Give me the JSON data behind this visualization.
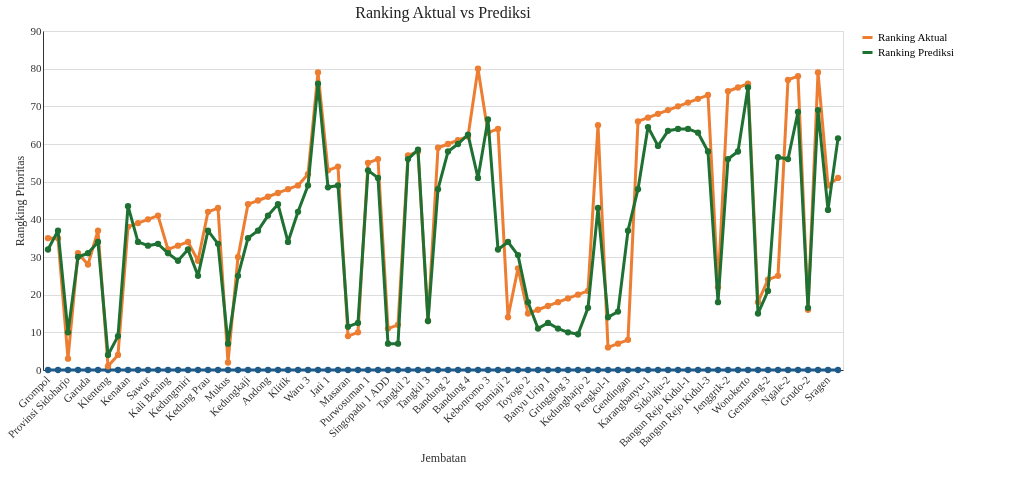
{
  "chart_data": {
    "type": "line",
    "title": "Ranking Aktual vs Prediksi",
    "xlabel": "Jembatan",
    "ylabel": "Rangking Prioritas",
    "categories": [
      "Grompol",
      null,
      "Provinsi Sidoharjo",
      null,
      "Garuda",
      null,
      "Klenteng",
      null,
      "Kenatan",
      null,
      "Sawur",
      null,
      "Kali Bening",
      null,
      "Kedungmiri",
      null,
      "Kedung Prau",
      null,
      "Mukus",
      null,
      "Kedungkaji",
      null,
      "Andong",
      null,
      "Klitik",
      null,
      "Waru 3",
      null,
      "Jati 1",
      null,
      "Masaran",
      null,
      "Purwosuman 1",
      null,
      "Singopadu 1 ADD",
      null,
      "Tangkil 2",
      null,
      "Tangkil 3",
      null,
      "Bandung 2",
      null,
      "Bandung 4",
      null,
      "Kebonromo 3",
      null,
      "Bumiaji 2",
      null,
      "Toyogo 2",
      null,
      "Banyu Urip 1",
      null,
      "Gringging 3",
      null,
      "Kedungharjo 2",
      null,
      "Pengkol-1",
      null,
      "Gendingan",
      null,
      "Karangbanyu-1",
      null,
      "Sidolaju-2",
      null,
      "Bangun Rejo Kidul-1",
      null,
      "Bangun Rejo Kidul-3",
      null,
      "Jenggrik-2",
      null,
      "Wonokerto",
      null,
      "Gemarang-2",
      null,
      "Ngale-2",
      null,
      "Grudo-2",
      null,
      "Sragen",
      null
    ],
    "series": [
      {
        "name": "Ranking Aktual",
        "color": "#ed7d31",
        "values": [
          35,
          35,
          3,
          31,
          28,
          37,
          1,
          4,
          38,
          39,
          40,
          41,
          32,
          33,
          34,
          29,
          42,
          43,
          2,
          30,
          44,
          45,
          46,
          47,
          48,
          49,
          52,
          79,
          53,
          54,
          9,
          10,
          55,
          56,
          11,
          12,
          57,
          58,
          13,
          59,
          60,
          61,
          62,
          80,
          63,
          64,
          14,
          27,
          15,
          16,
          17,
          18,
          19,
          20,
          21,
          65,
          6,
          7,
          8,
          66,
          67,
          68,
          69,
          70,
          71,
          72,
          73,
          22,
          74,
          75,
          76,
          18,
          24,
          25,
          77,
          78,
          16,
          79,
          49,
          51
        ]
      },
      {
        "name": "Ranking Prediksi",
        "color": "#1e7132",
        "values": [
          32,
          37,
          10,
          30,
          31,
          34,
          4,
          9,
          43.5,
          34,
          33,
          33.5,
          31,
          29,
          32,
          25,
          37,
          33.5,
          7,
          25,
          35,
          37,
          41,
          44,
          34,
          42,
          49,
          76,
          48.5,
          49,
          11.5,
          12.5,
          53,
          51,
          7,
          7,
          56,
          58.5,
          13,
          48,
          58,
          60,
          62.5,
          51,
          66.5,
          32,
          34,
          30.5,
          18,
          11,
          12.5,
          11,
          10,
          9.5,
          16.5,
          43,
          14,
          15.5,
          37,
          48,
          64.5,
          59.5,
          63.5,
          64,
          64,
          63,
          58,
          18,
          56,
          58,
          75,
          15,
          21,
          56.5,
          56,
          68.5,
          16.5,
          69,
          42.5,
          61.5
        ]
      },
      {
        "color": "#1f5b88",
        "values": [
          0,
          0,
          0,
          0,
          0,
          0,
          0,
          0,
          0,
          0,
          0,
          0,
          0,
          0,
          0,
          0,
          0,
          0,
          0,
          0,
          0,
          0,
          0,
          0,
          0,
          0,
          0,
          0,
          0,
          0,
          0,
          0,
          0,
          0,
          0,
          0,
          0,
          0,
          0,
          0,
          0,
          0,
          0,
          0,
          0,
          0,
          0,
          0,
          0,
          0,
          0,
          0,
          0,
          0,
          0,
          0,
          0,
          0,
          0,
          0,
          0,
          0,
          0,
          0,
          0,
          0,
          0,
          0,
          0,
          0,
          0,
          0,
          0,
          0,
          0,
          0,
          0,
          0,
          0,
          0
        ]
      }
    ],
    "ylim": [
      0,
      90
    ],
    "yticks": [
      0,
      10,
      20,
      30,
      40,
      50,
      60,
      70,
      80,
      90
    ],
    "grid": "y",
    "legend": "right",
    "marker": "circle",
    "line_style": "solid"
  }
}
